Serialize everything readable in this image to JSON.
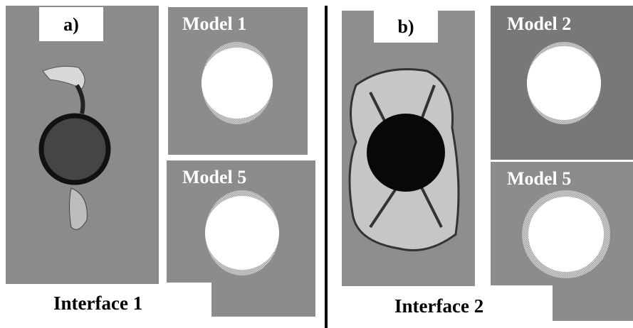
{
  "panels": [
    {
      "label": "a)",
      "models": [
        "Model 1",
        "Model 5"
      ],
      "caption": "Interface 1"
    },
    {
      "label": "b)",
      "models": [
        "Model 2",
        "Model 5"
      ],
      "caption": "Interface 2"
    }
  ]
}
